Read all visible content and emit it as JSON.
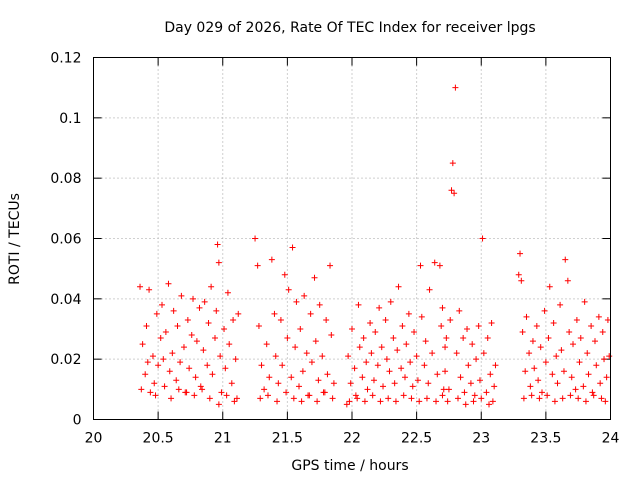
{
  "chart_data": {
    "type": "scatter",
    "title": "Day 029 of 2026, Rate Of TEC Index for receiver lpgs",
    "xlabel": "GPS time / hours",
    "ylabel": "ROTI / TECUs",
    "xlim": [
      20,
      24
    ],
    "ylim": [
      0,
      0.12
    ],
    "xticks": [
      20,
      20.5,
      21,
      21.5,
      22,
      22.5,
      23,
      23.5,
      24
    ],
    "xtick_labels": [
      "20",
      "20.5",
      "21",
      "21.5",
      "22",
      "22.5",
      "23",
      "23.5",
      "24"
    ],
    "yticks": [
      0,
      0.02,
      0.04,
      0.06,
      0.08,
      0.1,
      0.12
    ],
    "ytick_labels": [
      "0",
      "0.02",
      "0.04",
      "0.06",
      "0.08",
      "0.1",
      "0.12"
    ],
    "grid": true,
    "marker": "+",
    "color": "#ff0000",
    "series": [
      {
        "name": "ROTI",
        "points": [
          [
            20.36,
            0.044
          ],
          [
            20.38,
            0.025
          ],
          [
            20.4,
            0.015
          ],
          [
            20.41,
            0.031
          ],
          [
            20.43,
            0.043
          ],
          [
            20.44,
            0.009
          ],
          [
            20.46,
            0.021
          ],
          [
            20.47,
            0.012
          ],
          [
            20.49,
            0.035
          ],
          [
            20.5,
            0.018
          ],
          [
            20.52,
            0.027
          ],
          [
            20.53,
            0.038
          ],
          [
            20.55,
            0.011
          ],
          [
            20.56,
            0.029
          ],
          [
            20.58,
            0.045
          ],
          [
            20.59,
            0.016
          ],
          [
            20.61,
            0.022
          ],
          [
            20.62,
            0.036
          ],
          [
            20.64,
            0.013
          ],
          [
            20.65,
            0.031
          ],
          [
            20.67,
            0.019
          ],
          [
            20.68,
            0.041
          ],
          [
            20.7,
            0.024
          ],
          [
            20.71,
            0.009
          ],
          [
            20.73,
            0.033
          ],
          [
            20.74,
            0.017
          ],
          [
            20.76,
            0.028
          ],
          [
            20.77,
            0.04
          ],
          [
            20.79,
            0.014
          ],
          [
            20.8,
            0.026
          ],
          [
            20.82,
            0.037
          ],
          [
            20.83,
            0.011
          ],
          [
            20.85,
            0.023
          ],
          [
            20.86,
            0.039
          ],
          [
            20.88,
            0.018
          ],
          [
            20.89,
            0.032
          ],
          [
            20.91,
            0.044
          ],
          [
            20.92,
            0.015
          ],
          [
            20.94,
            0.027
          ],
          [
            20.95,
            0.036
          ],
          [
            20.96,
            0.058
          ],
          [
            20.97,
            0.052
          ],
          [
            20.98,
            0.021
          ],
          [
            20.99,
            0.009
          ],
          [
            21.01,
            0.03
          ],
          [
            21.02,
            0.017
          ],
          [
            21.04,
            0.042
          ],
          [
            21.05,
            0.025
          ],
          [
            21.07,
            0.012
          ],
          [
            21.08,
            0.033
          ],
          [
            21.1,
            0.02
          ],
          [
            21.11,
            0.007
          ],
          [
            21.12,
            0.035
          ],
          [
            20.37,
            0.01
          ],
          [
            20.42,
            0.019
          ],
          [
            20.48,
            0.008
          ],
          [
            20.54,
            0.02
          ],
          [
            20.6,
            0.007
          ],
          [
            20.66,
            0.01
          ],
          [
            20.72,
            0.009
          ],
          [
            20.78,
            0.008
          ],
          [
            20.84,
            0.01
          ],
          [
            20.9,
            0.007
          ],
          [
            20.97,
            0.005
          ],
          [
            21.03,
            0.008
          ],
          [
            21.09,
            0.006
          ],
          [
            21.25,
            0.06
          ],
          [
            21.27,
            0.051
          ],
          [
            21.28,
            0.031
          ],
          [
            21.3,
            0.018
          ],
          [
            21.32,
            0.01
          ],
          [
            21.34,
            0.025
          ],
          [
            21.36,
            0.014
          ],
          [
            21.38,
            0.053
          ],
          [
            21.4,
            0.035
          ],
          [
            21.41,
            0.021
          ],
          [
            21.43,
            0.012
          ],
          [
            21.45,
            0.033
          ],
          [
            21.46,
            0.018
          ],
          [
            21.48,
            0.048
          ],
          [
            21.5,
            0.027
          ],
          [
            21.51,
            0.043
          ],
          [
            21.53,
            0.014
          ],
          [
            21.54,
            0.057
          ],
          [
            21.56,
            0.024
          ],
          [
            21.57,
            0.039
          ],
          [
            21.59,
            0.011
          ],
          [
            21.6,
            0.03
          ],
          [
            21.62,
            0.016
          ],
          [
            21.63,
            0.041
          ],
          [
            21.65,
            0.022
          ],
          [
            21.66,
            0.008
          ],
          [
            21.68,
            0.035
          ],
          [
            21.69,
            0.019
          ],
          [
            21.71,
            0.047
          ],
          [
            21.72,
            0.026
          ],
          [
            21.74,
            0.013
          ],
          [
            21.75,
            0.038
          ],
          [
            21.77,
            0.021
          ],
          [
            21.78,
            0.009
          ],
          [
            21.8,
            0.033
          ],
          [
            21.81,
            0.015
          ],
          [
            21.83,
            0.051
          ],
          [
            21.84,
            0.028
          ],
          [
            21.86,
            0.012
          ],
          [
            21.29,
            0.007
          ],
          [
            21.35,
            0.008
          ],
          [
            21.42,
            0.006
          ],
          [
            21.49,
            0.009
          ],
          [
            21.55,
            0.007
          ],
          [
            21.61,
            0.006
          ],
          [
            21.67,
            0.008
          ],
          [
            21.73,
            0.006
          ],
          [
            21.79,
            0.009
          ],
          [
            21.85,
            0.007
          ],
          [
            21.96,
            0.005
          ],
          [
            21.97,
            0.021
          ],
          [
            21.99,
            0.012
          ],
          [
            22.0,
            0.03
          ],
          [
            22.02,
            0.017
          ],
          [
            22.03,
            0.008
          ],
          [
            22.05,
            0.038
          ],
          [
            22.06,
            0.024
          ],
          [
            22.08,
            0.014
          ],
          [
            22.09,
            0.027
          ],
          [
            22.11,
            0.019
          ],
          [
            22.12,
            0.01
          ],
          [
            22.14,
            0.032
          ],
          [
            22.15,
            0.022
          ],
          [
            22.17,
            0.013
          ],
          [
            22.18,
            0.029
          ],
          [
            22.2,
            0.018
          ],
          [
            22.21,
            0.037
          ],
          [
            22.23,
            0.024
          ],
          [
            22.24,
            0.011
          ],
          [
            22.26,
            0.033
          ],
          [
            22.27,
            0.02
          ],
          [
            22.29,
            0.016
          ],
          [
            22.3,
            0.039
          ],
          [
            22.32,
            0.027
          ],
          [
            22.33,
            0.012
          ],
          [
            22.35,
            0.023
          ],
          [
            22.36,
            0.044
          ],
          [
            22.38,
            0.017
          ],
          [
            22.39,
            0.031
          ],
          [
            22.41,
            0.014
          ],
          [
            22.42,
            0.025
          ],
          [
            22.44,
            0.035
          ],
          [
            22.45,
            0.019
          ],
          [
            22.47,
            0.011
          ],
          [
            22.48,
            0.029
          ],
          [
            22.5,
            0.021
          ],
          [
            22.51,
            0.013
          ],
          [
            22.53,
            0.051
          ],
          [
            22.54,
            0.034
          ],
          [
            22.56,
            0.018
          ],
          [
            22.57,
            0.026
          ],
          [
            22.59,
            0.012
          ],
          [
            22.6,
            0.043
          ],
          [
            22.62,
            0.022
          ],
          [
            22.64,
            0.052
          ],
          [
            22.66,
            0.015
          ],
          [
            22.68,
            0.051
          ],
          [
            22.69,
            0.031
          ],
          [
            22.71,
            0.01
          ],
          [
            22.72,
            0.024
          ],
          [
            21.98,
            0.006
          ],
          [
            22.04,
            0.007
          ],
          [
            22.1,
            0.006
          ],
          [
            22.16,
            0.008
          ],
          [
            22.22,
            0.006
          ],
          [
            22.28,
            0.007
          ],
          [
            22.34,
            0.006
          ],
          [
            22.4,
            0.008
          ],
          [
            22.46,
            0.007
          ],
          [
            22.52,
            0.006
          ],
          [
            22.58,
            0.007
          ],
          [
            22.65,
            0.006
          ],
          [
            22.7,
            0.008
          ],
          [
            22.7,
            0.037
          ],
          [
            22.72,
            0.016
          ],
          [
            22.73,
            0.027
          ],
          [
            22.75,
            0.01
          ],
          [
            22.76,
            0.033
          ],
          [
            22.77,
            0.076
          ],
          [
            22.78,
            0.085
          ],
          [
            22.79,
            0.075
          ],
          [
            22.8,
            0.11
          ],
          [
            22.81,
            0.022
          ],
          [
            22.83,
            0.036
          ],
          [
            22.84,
            0.014
          ],
          [
            22.86,
            0.027
          ],
          [
            22.87,
            0.009
          ],
          [
            22.89,
            0.03
          ],
          [
            22.9,
            0.018
          ],
          [
            22.92,
            0.012
          ],
          [
            22.93,
            0.025
          ],
          [
            22.95,
            0.008
          ],
          [
            22.96,
            0.02
          ],
          [
            22.98,
            0.031
          ],
          [
            22.99,
            0.013
          ],
          [
            23.01,
            0.06
          ],
          [
            23.02,
            0.022
          ],
          [
            23.04,
            0.009
          ],
          [
            23.05,
            0.027
          ],
          [
            23.07,
            0.015
          ],
          [
            23.08,
            0.032
          ],
          [
            23.1,
            0.011
          ],
          [
            23.11,
            0.018
          ],
          [
            22.74,
            0.006
          ],
          [
            22.82,
            0.007
          ],
          [
            22.88,
            0.005
          ],
          [
            22.94,
            0.006
          ],
          [
            23.0,
            0.007
          ],
          [
            23.06,
            0.005
          ],
          [
            23.09,
            0.006
          ],
          [
            23.29,
            0.048
          ],
          [
            23.3,
            0.055
          ],
          [
            23.31,
            0.046
          ],
          [
            23.32,
            0.029
          ],
          [
            23.34,
            0.016
          ],
          [
            23.35,
            0.034
          ],
          [
            23.37,
            0.022
          ],
          [
            23.38,
            0.011
          ],
          [
            23.4,
            0.026
          ],
          [
            23.41,
            0.017
          ],
          [
            23.43,
            0.031
          ],
          [
            23.44,
            0.013
          ],
          [
            23.46,
            0.024
          ],
          [
            23.47,
            0.009
          ],
          [
            23.49,
            0.036
          ],
          [
            23.5,
            0.019
          ],
          [
            23.52,
            0.027
          ],
          [
            23.53,
            0.044
          ],
          [
            23.55,
            0.015
          ],
          [
            23.56,
            0.032
          ],
          [
            23.58,
            0.021
          ],
          [
            23.59,
            0.012
          ],
          [
            23.61,
            0.038
          ],
          [
            23.62,
            0.023
          ],
          [
            23.64,
            0.016
          ],
          [
            23.65,
            0.053
          ],
          [
            23.67,
            0.046
          ],
          [
            23.68,
            0.029
          ],
          [
            23.7,
            0.014
          ],
          [
            23.71,
            0.025
          ],
          [
            23.73,
            0.01
          ],
          [
            23.74,
            0.033
          ],
          [
            23.76,
            0.019
          ],
          [
            23.77,
            0.027
          ],
          [
            23.79,
            0.011
          ],
          [
            23.8,
            0.039
          ],
          [
            23.82,
            0.022
          ],
          [
            23.83,
            0.015
          ],
          [
            23.85,
            0.031
          ],
          [
            23.86,
            0.009
          ],
          [
            23.88,
            0.026
          ],
          [
            23.89,
            0.018
          ],
          [
            23.91,
            0.034
          ],
          [
            23.92,
            0.012
          ],
          [
            23.94,
            0.029
          ],
          [
            23.95,
            0.02
          ],
          [
            23.97,
            0.014
          ],
          [
            23.98,
            0.033
          ],
          [
            23.99,
            0.021
          ],
          [
            23.33,
            0.007
          ],
          [
            23.39,
            0.008
          ],
          [
            23.45,
            0.007
          ],
          [
            23.51,
            0.008
          ],
          [
            23.57,
            0.006
          ],
          [
            23.63,
            0.007
          ],
          [
            23.69,
            0.008
          ],
          [
            23.75,
            0.007
          ],
          [
            23.81,
            0.006
          ],
          [
            23.87,
            0.008
          ],
          [
            23.93,
            0.007
          ],
          [
            23.96,
            0.006
          ]
        ]
      }
    ]
  }
}
